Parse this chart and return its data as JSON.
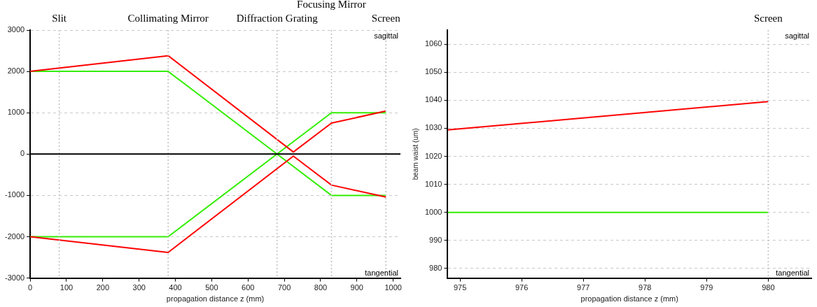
{
  "chart_data": [
    {
      "type": "line",
      "xlabel": "propagation distance z (mm)",
      "xlim": [
        0,
        1020
      ],
      "xticks": [
        0,
        100,
        200,
        300,
        400,
        500,
        600,
        700,
        800,
        900,
        1000
      ],
      "ylim": [
        -3000,
        3000
      ],
      "yticks": [
        -3000,
        -2000,
        -1000,
        0,
        1000,
        2000,
        3000
      ],
      "grid": "y",
      "legend": false,
      "marker": "none",
      "series": [
        {
          "color": "#ff0000",
          "x": [
            0,
            380,
            725,
            830,
            980
          ],
          "values": [
            2000,
            2380,
            50,
            750,
            1040
          ]
        },
        {
          "color": "#ff0000",
          "x": [
            0,
            380,
            725,
            830,
            980
          ],
          "values": [
            -2000,
            -2380,
            -50,
            -750,
            -1040
          ]
        },
        {
          "color": "#33ee00",
          "x": [
            0,
            380,
            680,
            830,
            980
          ],
          "values": [
            2000,
            2000,
            0,
            -1000,
            -1000
          ]
        },
        {
          "color": "#33ee00",
          "x": [
            0,
            380,
            680,
            830,
            980
          ],
          "values": [
            -2000,
            -2000,
            0,
            1000,
            1000
          ]
        }
      ],
      "ref_lines": [
        {
          "axis": "x",
          "value": 80,
          "label": "Slit",
          "color": "#c0c0c0",
          "line_style": "dotted"
        },
        {
          "axis": "x",
          "value": 380,
          "label": "Collimating Mirror",
          "color": "#c0c0c0",
          "line_style": "dotted"
        },
        {
          "axis": "x",
          "value": 680,
          "label": "Diffraction Grating",
          "color": "#c0c0c0",
          "line_style": "dotted"
        },
        {
          "axis": "x",
          "value": 830,
          "label": "Focusing Mirror",
          "color": "#c0c0c0",
          "line_style": "dotted"
        },
        {
          "axis": "x",
          "value": 980,
          "label": "Screen",
          "color": "#c0c0c0",
          "line_style": "dotted"
        },
        {
          "axis": "y",
          "value": 0,
          "color": "#000000",
          "line_style": "solid"
        }
      ],
      "annotations": [
        "sagittal",
        "tangential"
      ]
    },
    {
      "type": "line",
      "xlabel": "propagation distance z (mm)",
      "ylabel": "beam waist (um)",
      "xlim": [
        974.8,
        980.7
      ],
      "xticks": [
        975,
        976,
        977,
        978,
        979,
        980
      ],
      "ylim": [
        976.6,
        1065
      ],
      "yticks": [
        980,
        990,
        1000,
        1010,
        1020,
        1030,
        1040,
        1050,
        1060
      ],
      "grid": "y",
      "legend": false,
      "marker": "none",
      "series": [
        {
          "color": "#ff0000",
          "x": [
            974.8,
            980
          ],
          "values": [
            1029.4,
            1039.5
          ]
        },
        {
          "color": "#33ee00",
          "x": [
            974.8,
            980
          ],
          "values": [
            1000,
            1000
          ]
        }
      ],
      "ref_lines": [
        {
          "axis": "x",
          "value": 980,
          "label": "Screen",
          "color": "#c0c0c0",
          "line_style": "dotted"
        }
      ],
      "annotations": [
        "sagittal",
        "tangential"
      ]
    }
  ]
}
